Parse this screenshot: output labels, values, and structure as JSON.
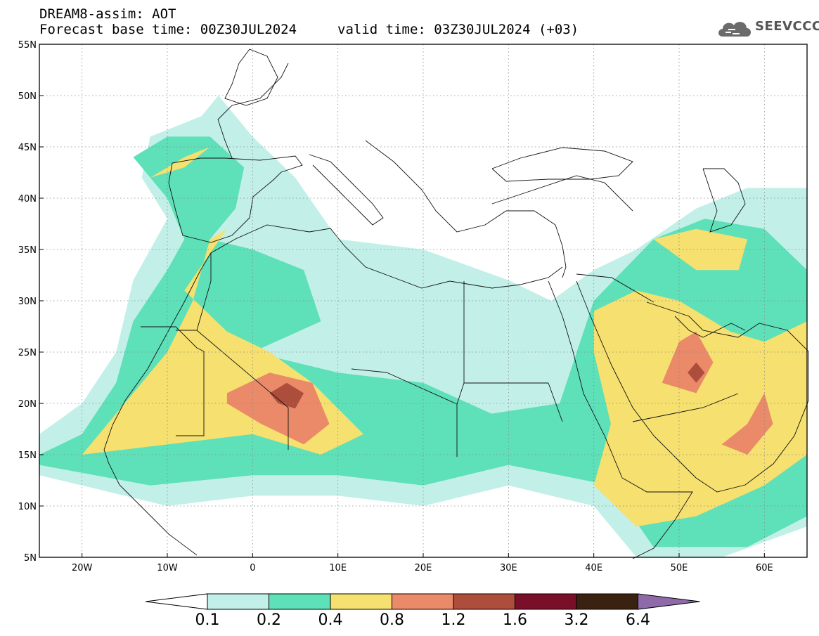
{
  "header": {
    "line1": "DREAM8-assim: AOT",
    "line2_base": "Forecast base time: 00Z30JUL2024",
    "line2_valid": "valid time: 03Z30JUL2024 (+03)"
  },
  "logo": {
    "text": "SEEVCCC",
    "icon": "cloud-icon"
  },
  "map": {
    "lon_range": [
      -25,
      65
    ],
    "lat_range": [
      5,
      55
    ],
    "lat_ticks": [
      {
        "value": 55,
        "label": "55N"
      },
      {
        "value": 50,
        "label": "50N"
      },
      {
        "value": 45,
        "label": "45N"
      },
      {
        "value": 40,
        "label": "40N"
      },
      {
        "value": 35,
        "label": "35N"
      },
      {
        "value": 30,
        "label": "30N"
      },
      {
        "value": 25,
        "label": "25N"
      },
      {
        "value": 20,
        "label": "20N"
      },
      {
        "value": 15,
        "label": "15N"
      },
      {
        "value": 10,
        "label": "10N"
      },
      {
        "value": 5,
        "label": "5N"
      }
    ],
    "lon_ticks": [
      {
        "value": -20,
        "label": "20W"
      },
      {
        "value": -10,
        "label": "10W"
      },
      {
        "value": 0,
        "label": "0"
      },
      {
        "value": 10,
        "label": "10E"
      },
      {
        "value": 20,
        "label": "20E"
      },
      {
        "value": 30,
        "label": "30E"
      },
      {
        "value": 40,
        "label": "40E"
      },
      {
        "value": 50,
        "label": "50E"
      },
      {
        "value": 60,
        "label": "60E"
      }
    ],
    "grid": true
  },
  "colorbar": {
    "colors": [
      "#c2f0e8",
      "#5ee0b8",
      "#f5e070",
      "#ea8a68",
      "#ad4e3c",
      "#7a0f2a",
      "#3a2210",
      "#8e6aa8"
    ],
    "under_color": "#ffffff",
    "labels": [
      "0.1",
      "0.2",
      "0.4",
      "0.8",
      "1.2",
      "1.6",
      "3.2",
      "6.4"
    ]
  },
  "chart_data": {
    "type": "heatmap",
    "variable": "AOT",
    "levels": [
      0.1,
      0.2,
      0.4,
      0.8,
      1.2,
      1.6,
      3.2,
      6.4
    ],
    "regions": [
      {
        "level": 0.1,
        "lonlat": [
          [
            -25,
            17
          ],
          [
            -20,
            20
          ],
          [
            -16,
            25
          ],
          [
            -14,
            32
          ],
          [
            -10,
            38
          ],
          [
            -13,
            42
          ],
          [
            -12,
            46
          ],
          [
            -6,
            48
          ],
          [
            -4,
            50
          ],
          [
            0,
            46
          ],
          [
            5,
            42
          ],
          [
            10,
            36
          ],
          [
            20,
            35
          ],
          [
            30,
            32
          ],
          [
            35,
            30
          ],
          [
            40,
            33
          ],
          [
            45,
            35
          ],
          [
            52,
            39
          ],
          [
            58,
            41
          ],
          [
            65,
            41
          ],
          [
            65,
            8
          ],
          [
            55,
            5
          ],
          [
            45,
            5
          ],
          [
            40,
            10
          ],
          [
            30,
            12
          ],
          [
            20,
            10
          ],
          [
            10,
            11
          ],
          [
            0,
            11
          ],
          [
            -10,
            10
          ],
          [
            -25,
            13
          ]
        ]
      },
      {
        "level": 0.2,
        "lonlat": [
          [
            -25,
            15
          ],
          [
            -20,
            17
          ],
          [
            -16,
            22
          ],
          [
            -14,
            28
          ],
          [
            -10,
            33
          ],
          [
            -8,
            36
          ],
          [
            -10,
            40
          ],
          [
            -14,
            44
          ],
          [
            -10,
            46
          ],
          [
            -5,
            46
          ],
          [
            -1,
            43
          ],
          [
            -2,
            39
          ],
          [
            -5,
            36
          ],
          [
            0,
            35
          ],
          [
            6,
            33
          ],
          [
            8,
            28
          ],
          [
            0,
            25
          ],
          [
            10,
            23
          ],
          [
            20,
            22
          ],
          [
            28,
            19
          ],
          [
            36,
            20
          ],
          [
            40,
            30
          ],
          [
            47,
            36
          ],
          [
            53,
            38
          ],
          [
            60,
            37
          ],
          [
            65,
            33
          ],
          [
            65,
            9
          ],
          [
            58,
            6
          ],
          [
            47,
            6
          ],
          [
            42,
            12
          ],
          [
            30,
            14
          ],
          [
            20,
            12
          ],
          [
            10,
            13
          ],
          [
            0,
            13
          ],
          [
            -12,
            12
          ],
          [
            -25,
            14
          ]
        ]
      },
      {
        "level": 0.4,
        "lonlat": [
          [
            -20,
            15
          ],
          [
            -15,
            20
          ],
          [
            -10,
            25
          ],
          [
            -7,
            30
          ],
          [
            -5,
            36
          ],
          [
            -3,
            37
          ],
          [
            -8,
            31
          ],
          [
            -3,
            27
          ],
          [
            2,
            25
          ],
          [
            7,
            22
          ],
          [
            13,
            17
          ],
          [
            8,
            15
          ],
          [
            0,
            17
          ],
          [
            -10,
            16
          ],
          [
            -20,
            15
          ]
        ]
      },
      {
        "level": 0.4,
        "lonlat": [
          [
            40,
            29
          ],
          [
            45,
            31
          ],
          [
            50,
            30
          ],
          [
            56,
            27
          ],
          [
            60,
            26
          ],
          [
            65,
            28
          ],
          [
            65,
            15
          ],
          [
            60,
            12
          ],
          [
            52,
            9
          ],
          [
            45,
            8
          ],
          [
            40,
            12
          ],
          [
            42,
            18
          ],
          [
            40,
            25
          ],
          [
            40,
            29
          ]
        ]
      },
      {
        "level": 0.4,
        "lonlat": [
          [
            -12,
            42
          ],
          [
            -8,
            44
          ],
          [
            -5,
            45
          ],
          [
            -8,
            43
          ],
          [
            -12,
            42
          ]
        ]
      },
      {
        "level": 0.4,
        "lonlat": [
          [
            47,
            36
          ],
          [
            52,
            37
          ],
          [
            58,
            36
          ],
          [
            57,
            33
          ],
          [
            52,
            33
          ],
          [
            47,
            36
          ]
        ]
      },
      {
        "level": 0.8,
        "lonlat": [
          [
            -3,
            21
          ],
          [
            2,
            23
          ],
          [
            7,
            22
          ],
          [
            9,
            18
          ],
          [
            6,
            16
          ],
          [
            1,
            18
          ],
          [
            -3,
            20
          ],
          [
            -3,
            21
          ]
        ]
      },
      {
        "level": 0.8,
        "lonlat": [
          [
            50,
            26
          ],
          [
            52,
            27
          ],
          [
            54,
            24
          ],
          [
            52,
            21
          ],
          [
            48,
            22
          ],
          [
            50,
            26
          ]
        ]
      },
      {
        "level": 0.8,
        "lonlat": [
          [
            55,
            16
          ],
          [
            58,
            18
          ],
          [
            60,
            21
          ],
          [
            61,
            18
          ],
          [
            58,
            15
          ],
          [
            55,
            16
          ]
        ]
      },
      {
        "level": 1.2,
        "lonlat": [
          [
            2,
            21
          ],
          [
            4,
            22
          ],
          [
            6,
            21
          ],
          [
            5,
            19.5
          ],
          [
            3,
            20
          ],
          [
            2,
            21
          ]
        ]
      },
      {
        "level": 1.2,
        "lonlat": [
          [
            51,
            23
          ],
          [
            52,
            24
          ],
          [
            53,
            23
          ],
          [
            52,
            22
          ],
          [
            51,
            23
          ]
        ]
      }
    ]
  }
}
